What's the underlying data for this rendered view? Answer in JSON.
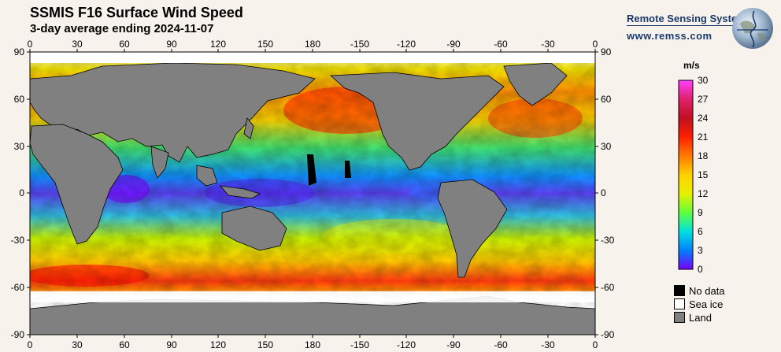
{
  "title": "SSMIS F16 Surface Wind Speed",
  "subtitle": "3-day average ending 2024-11-07",
  "logo": {
    "name": "Remote Sensing Systems",
    "url": "www.remss.com"
  },
  "map": {
    "top_lon_labels": [
      "0",
      "30",
      "60",
      "90",
      "120",
      "150",
      "180",
      "-150",
      "-120",
      "-90",
      "-60",
      "-30",
      "0"
    ],
    "bottom_lon_labels": [
      "0",
      "30",
      "60",
      "90",
      "120",
      "150",
      "180",
      "-150",
      "-120",
      "-90",
      "-60",
      "-30",
      "0"
    ],
    "lat_labels": [
      "90",
      "60",
      "30",
      "0",
      "-30",
      "-60",
      "-90"
    ],
    "land_color": "#808080",
    "ice_color": "#ffffff",
    "ocean_low_color": "#7a00ff",
    "ocean_mid_color": "#20e0e0",
    "ocean_high_color": "#ff2000"
  },
  "colorbar": {
    "unit": "m/s",
    "ticks": [
      "30",
      "27",
      "24",
      "21",
      "18",
      "15",
      "12",
      "9",
      "6",
      "3",
      "0"
    ],
    "min": 0,
    "max": 30,
    "colors": [
      "#ff40ff",
      "#e0206a",
      "#c01020",
      "#ff2000",
      "#ff7a00",
      "#ffd000",
      "#e8f000",
      "#60ff40",
      "#00e0e0",
      "#0080ff",
      "#7a00ff"
    ]
  },
  "legend": [
    {
      "label": "No data",
      "color": "#000000"
    },
    {
      "label": "Sea ice",
      "color": "#ffffff"
    },
    {
      "label": "Land",
      "color": "#808080"
    }
  ]
}
